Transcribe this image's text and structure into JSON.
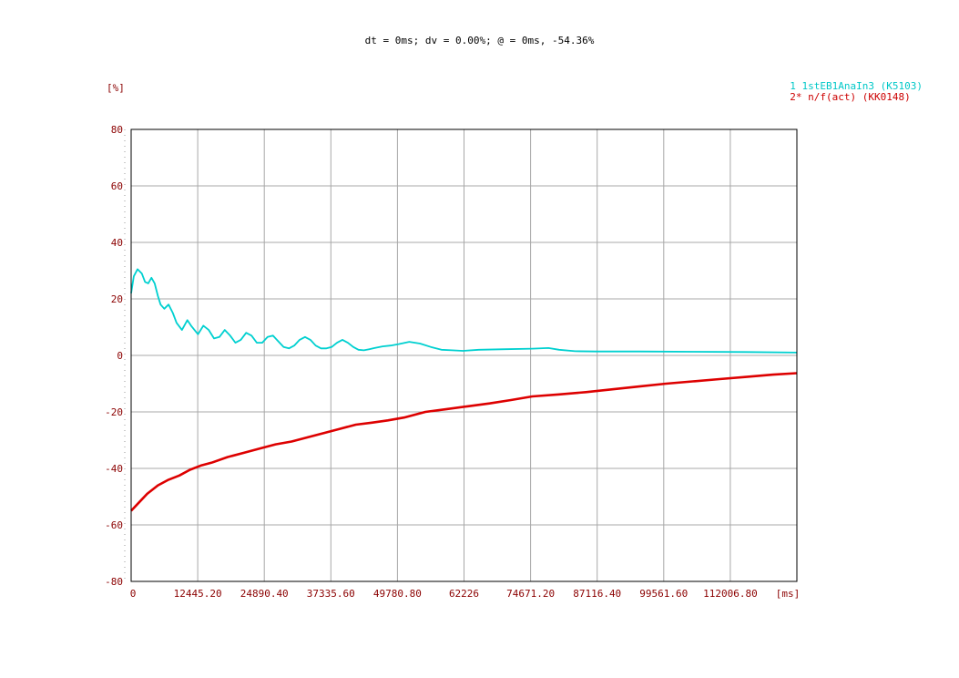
{
  "header": {
    "cursor_readout": "dt = 0ms; dv = 0.00%; @ = 0ms, -54.36%"
  },
  "chart_data": {
    "type": "line",
    "y_unit_label": "[%]",
    "x_unit_label": "[ms]",
    "xlim": [
      0,
      124452
    ],
    "ylim": [
      -80,
      80
    ],
    "x_ticks": [
      "0",
      "12445.20",
      "24890.40",
      "37335.60",
      "49780.80",
      "62226",
      "74671.20",
      "87116.40",
      "99561.60",
      "112006.80"
    ],
    "x_tick_values": [
      0,
      12445.2,
      24890.4,
      37335.6,
      49780.8,
      62226,
      74671.2,
      87116.4,
      99561.6,
      112006.8
    ],
    "y_ticks": [
      "80",
      "60",
      "40",
      "20",
      "0",
      "-20",
      "-40",
      "-60",
      "-80"
    ],
    "y_tick_values": [
      80,
      60,
      40,
      20,
      0,
      -20,
      -40,
      -60,
      -80
    ],
    "grid": true,
    "legend_position": "top-right",
    "series": [
      {
        "name": "1  1stEB1AnaIn3  (K5103)",
        "color": "#00d0d0",
        "x": [
          0,
          500,
          1200,
          2000,
          2600,
          3200,
          3800,
          4400,
          5000,
          5500,
          6200,
          7000,
          7800,
          8500,
          9500,
          10500,
          11200,
          12500,
          13500,
          14500,
          15500,
          16500,
          17500,
          18500,
          19500,
          20500,
          21500,
          22500,
          23500,
          24500,
          25500,
          26500,
          27500,
          28500,
          29500,
          30500,
          31500,
          32500,
          33500,
          34500,
          35500,
          36500,
          37500,
          38500,
          39500,
          40500,
          41500,
          42500,
          43500,
          44500,
          45500,
          47000,
          48500,
          50000,
          52000,
          54000,
          56000,
          58000,
          60000,
          62000,
          65000,
          70000,
          75000,
          78000,
          80000,
          83000,
          87000,
          95000,
          105000,
          115000,
          124452
        ],
        "values": [
          22,
          28,
          30.5,
          29,
          26,
          25.5,
          27.5,
          25.5,
          21,
          18,
          16.5,
          18,
          15,
          11.5,
          9,
          12.5,
          10.5,
          7.5,
          10.5,
          9,
          6,
          6.5,
          9,
          7,
          4.5,
          5.5,
          8,
          7,
          4.5,
          4.5,
          6.5,
          7,
          5,
          3,
          2.5,
          3.5,
          5.5,
          6.5,
          5.5,
          3.5,
          2.5,
          2.5,
          3,
          4.5,
          5.5,
          4.5,
          3,
          2,
          1.8,
          2.2,
          2.6,
          3.2,
          3.5,
          4,
          4.8,
          4.2,
          3,
          2,
          1.8,
          1.6,
          2,
          2.2,
          2.4,
          2.6,
          2,
          1.5,
          1.4,
          1.4,
          1.3,
          1.2,
          1.0
        ]
      },
      {
        "name": "2* n/f(act)  (KK0148)",
        "color": "#dd0000",
        "x": [
          0,
          1500,
          3000,
          5000,
          7000,
          9000,
          11000,
          13000,
          15000,
          18000,
          21000,
          24000,
          27000,
          30000,
          33000,
          36000,
          39000,
          42000,
          45000,
          48000,
          51000,
          55000,
          59000,
          63000,
          67000,
          71000,
          75000,
          80000,
          85000,
          90000,
          95000,
          100000,
          105000,
          110000,
          115000,
          120000,
          124452
        ],
        "values": [
          -55,
          -52,
          -49,
          -46,
          -44,
          -42.5,
          -40.5,
          -39,
          -38,
          -36,
          -34.5,
          -33,
          -31.5,
          -30.5,
          -29,
          -27.5,
          -26,
          -24.5,
          -23.8,
          -23,
          -22,
          -20,
          -19,
          -18,
          -17,
          -15.8,
          -14.5,
          -13.8,
          -13,
          -12,
          -11,
          -10,
          -9.2,
          -8.4,
          -7.6,
          -6.8,
          -6.3
        ]
      }
    ]
  }
}
